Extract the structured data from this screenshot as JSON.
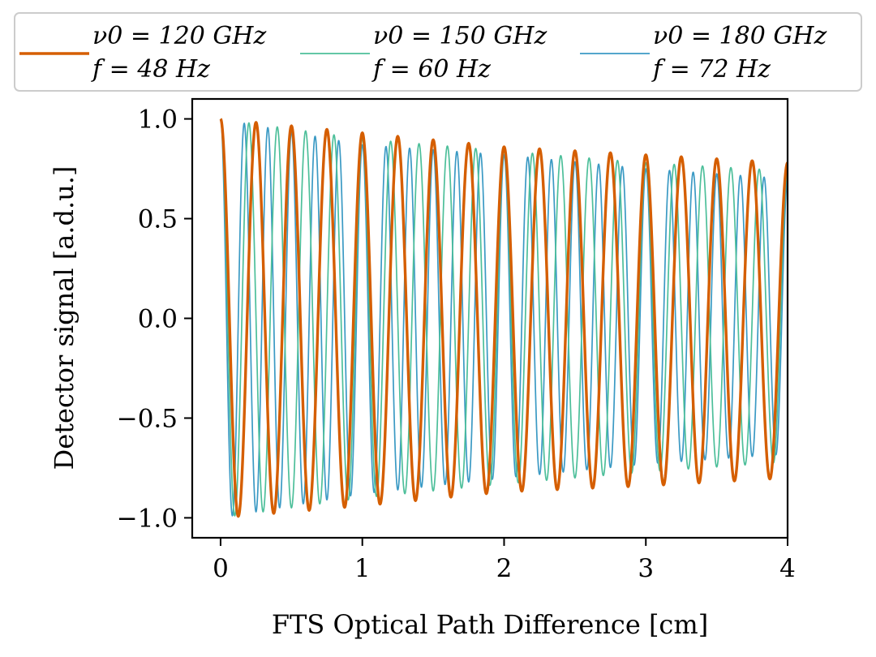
{
  "chart_data": {
    "type": "line",
    "title": "",
    "xlabel": "FTS Optical Path Difference [cm]",
    "ylabel": "Detector signal [a.d.u.]",
    "xlim": [
      -0.2,
      4.0
    ],
    "ylim": [
      -1.1,
      1.1
    ],
    "xticks": [
      0,
      1,
      2,
      3,
      4
    ],
    "xtick_labels": [
      "0",
      "1",
      "2",
      "3",
      "4"
    ],
    "yticks": [
      1.0,
      0.5,
      0.0,
      -0.5,
      -1.0
    ],
    "ytick_labels": [
      "1.0",
      "0.5",
      "0.0",
      "−0.5",
      "−1.0"
    ],
    "grid": false,
    "legend_position": "top",
    "x_range": [
      0,
      4
    ],
    "series": [
      {
        "name": "ν0 = 120 GHz, f = 48 Hz",
        "legend_line1": "ν0 = 120 GHz",
        "legend_line2": "f = 48 Hz",
        "color": "#d55e00",
        "line_width": "thick",
        "period_cm": 0.25,
        "envelope_peak": [
          [
            0.0,
            1.0
          ],
          [
            1.0,
            0.93
          ],
          [
            2.0,
            0.86
          ],
          [
            3.0,
            0.82
          ],
          [
            4.0,
            0.78
          ]
        ],
        "envelope_trough": [
          [
            0.0,
            -1.0
          ],
          [
            1.0,
            -0.94
          ],
          [
            2.0,
            -0.87
          ],
          [
            3.0,
            -0.84
          ],
          [
            4.0,
            -0.8
          ]
        ]
      },
      {
        "name": "ν0 = 150 GHz, f = 60 Hz",
        "legend_line1": "ν0 = 150 GHz",
        "legend_line2": "f = 60 Hz",
        "color": "#4dbf9a",
        "line_width": "thin",
        "period_cm": 0.2,
        "envelope_peak": [
          [
            0.0,
            1.0
          ],
          [
            1.0,
            0.9
          ],
          [
            2.0,
            0.84
          ],
          [
            3.0,
            0.78
          ],
          [
            4.0,
            0.74
          ]
        ],
        "envelope_trough": [
          [
            0.0,
            -1.0
          ],
          [
            1.0,
            -0.9
          ],
          [
            2.0,
            -0.83
          ],
          [
            3.0,
            -0.77
          ],
          [
            4.0,
            -0.72
          ]
        ]
      },
      {
        "name": "ν0 = 180 GHz, f = 72 Hz",
        "legend_line1": "ν0 = 180 GHz",
        "legend_line2": "f = 72 Hz",
        "color": "#3b9ac4",
        "line_width": "thin",
        "period_cm": 0.1667,
        "envelope_peak": [
          [
            0.0,
            1.0
          ],
          [
            1.0,
            0.87
          ],
          [
            2.0,
            0.82
          ],
          [
            3.0,
            0.75
          ],
          [
            4.0,
            0.7
          ]
        ],
        "envelope_trough": [
          [
            0.0,
            -1.0
          ],
          [
            1.0,
            -0.88
          ],
          [
            2.0,
            -0.8
          ],
          [
            3.0,
            -0.73
          ],
          [
            4.0,
            -0.68
          ]
        ]
      }
    ]
  }
}
